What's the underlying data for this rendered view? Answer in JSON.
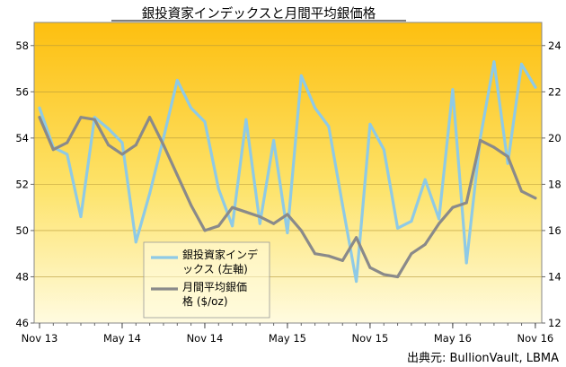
{
  "chart_data": {
    "type": "line",
    "title": "銀投資家インデックスと月間平均銀価格",
    "source": "出典元: BullionVault, LBMA",
    "x_tick_labels": [
      "Nov 13",
      "May 14",
      "Nov 14",
      "May 15",
      "Nov 15",
      "May 16",
      "Nov 16"
    ],
    "x_tick_index": [
      0,
      6,
      12,
      18,
      24,
      30,
      36
    ],
    "y_left": {
      "min": 46,
      "max": 59,
      "ticks": [
        46,
        48,
        50,
        52,
        54,
        56,
        58
      ]
    },
    "y_right": {
      "min": 12,
      "max": 25,
      "ticks": [
        12,
        14,
        16,
        18,
        20,
        22,
        24
      ]
    },
    "legend": {
      "placement": "center-bottom"
    },
    "series": [
      {
        "name": "銀投資家インデックス (左軸)",
        "axis": "left",
        "color": "#8ecae6",
        "values": [
          55.3,
          53.6,
          53.3,
          50.6,
          54.9,
          54.4,
          53.8,
          49.5,
          51.6,
          54.0,
          56.5,
          55.3,
          54.7,
          51.8,
          50.2,
          54.8,
          50.3,
          53.9,
          49.9,
          56.7,
          55.3,
          54.5,
          51.1,
          47.8,
          54.6,
          53.5,
          50.1,
          50.4,
          52.2,
          50.5,
          56.1,
          48.6,
          54.0,
          57.3,
          52.9,
          57.2,
          56.2
        ]
      },
      {
        "name": "月間平均銀価格 ($/oz)",
        "axis": "right",
        "color": "#8a8a8a",
        "values": [
          20.9,
          19.5,
          19.8,
          20.9,
          20.8,
          19.7,
          19.3,
          19.7,
          20.9,
          19.7,
          18.4,
          17.1,
          16.0,
          16.2,
          17.0,
          16.8,
          16.6,
          16.3,
          16.7,
          16.0,
          15.0,
          14.9,
          14.7,
          15.7,
          14.4,
          14.1,
          14.0,
          15.0,
          15.4,
          16.3,
          17.0,
          17.2,
          19.9,
          19.6,
          19.2,
          17.7,
          17.4
        ]
      }
    ]
  }
}
